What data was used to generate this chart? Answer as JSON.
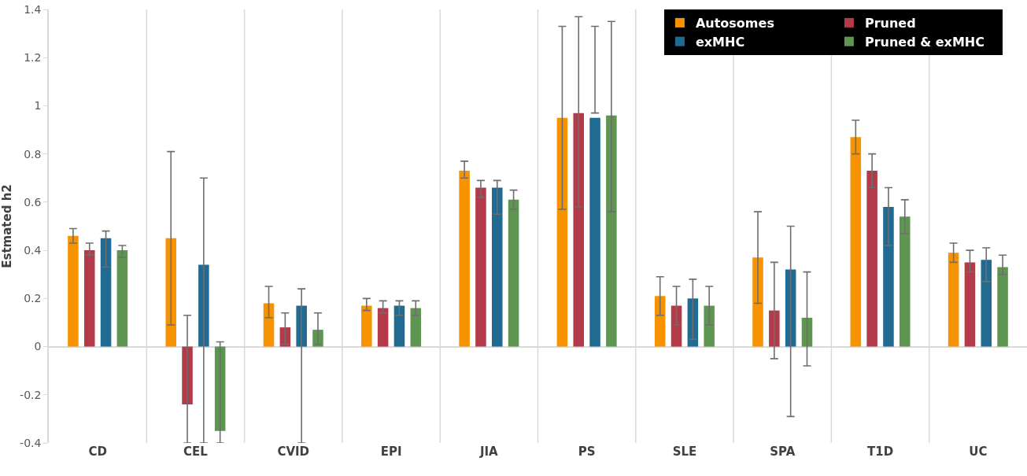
{
  "chart_data": {
    "type": "bar",
    "ylabel": "Estmated h2",
    "categories": [
      "CD",
      "CEL",
      "CVID",
      "EPI",
      "JIA",
      "PS",
      "SLE",
      "SPA",
      "T1D",
      "UC"
    ],
    "ylim": [
      -0.4,
      1.4
    ],
    "yticks": [
      {
        "value": -0.4,
        "label": "-0.4"
      },
      {
        "value": -0.2,
        "label": "-0.2"
      },
      0,
      0.2,
      0.4,
      0.6,
      0.8,
      1,
      1.2,
      1.4
    ],
    "grid": "x",
    "legend": "top right",
    "series": [
      {
        "name": "Autosomes",
        "color": "#f79200",
        "values": [
          0.46,
          0.45,
          0.18,
          0.17,
          0.73,
          0.95,
          0.21,
          0.37,
          0.87,
          0.39
        ],
        "errors": [
          [
            0.43,
            0.49
          ],
          [
            0.09,
            0.81
          ],
          [
            0.12,
            0.25
          ],
          [
            0.15,
            0.2
          ],
          [
            0.7,
            0.77
          ],
          [
            0.57,
            1.33
          ],
          [
            0.13,
            0.29
          ],
          [
            0.18,
            0.56
          ],
          [
            0.8,
            0.94
          ],
          [
            0.35,
            0.43
          ]
        ]
      },
      {
        "name": "Pruned",
        "color": "#b33a48",
        "values": [
          0.4,
          -0.24,
          0.08,
          0.16,
          0.66,
          0.97,
          0.17,
          0.15,
          0.73,
          0.35
        ],
        "errors": [
          [
            0.38,
            0.43
          ],
          [
            -0.4,
            0.13
          ],
          [
            0.01,
            0.14
          ],
          [
            0.14,
            0.19
          ],
          [
            0.62,
            0.69
          ],
          [
            0.58,
            1.37
          ],
          [
            0.09,
            0.25
          ],
          [
            -0.05,
            0.35
          ],
          [
            0.66,
            0.8
          ],
          [
            0.31,
            0.4
          ]
        ]
      },
      {
        "name": "exMHC",
        "color": "#216a91",
        "values": [
          0.45,
          0.34,
          0.17,
          0.17,
          0.66,
          0.95,
          0.2,
          0.32,
          0.58,
          0.36
        ],
        "errors": [
          [
            0.33,
            0.48
          ],
          [
            -0.4,
            0.7
          ],
          [
            -0.4,
            0.24
          ],
          [
            0.13,
            0.19
          ],
          [
            0.55,
            0.69
          ],
          [
            0.97,
            1.33
          ],
          [
            0.03,
            0.28
          ],
          [
            -0.29,
            0.5
          ],
          [
            0.42,
            0.66
          ],
          [
            0.27,
            0.41
          ]
        ]
      },
      {
        "name": "Pruned & exMHC",
        "color": "#5e9651",
        "values": [
          0.4,
          -0.35,
          0.07,
          0.16,
          0.61,
          0.96,
          0.17,
          0.12,
          0.54,
          0.33
        ],
        "errors": [
          [
            0.37,
            0.42
          ],
          [
            -0.4,
            0.02
          ],
          [
            0.01,
            0.14
          ],
          [
            0.13,
            0.19
          ],
          [
            0.57,
            0.65
          ],
          [
            0.56,
            1.35
          ],
          [
            0.09,
            0.25
          ],
          [
            -0.08,
            0.31
          ],
          [
            0.47,
            0.61
          ],
          [
            0.3,
            0.38
          ]
        ]
      }
    ]
  }
}
